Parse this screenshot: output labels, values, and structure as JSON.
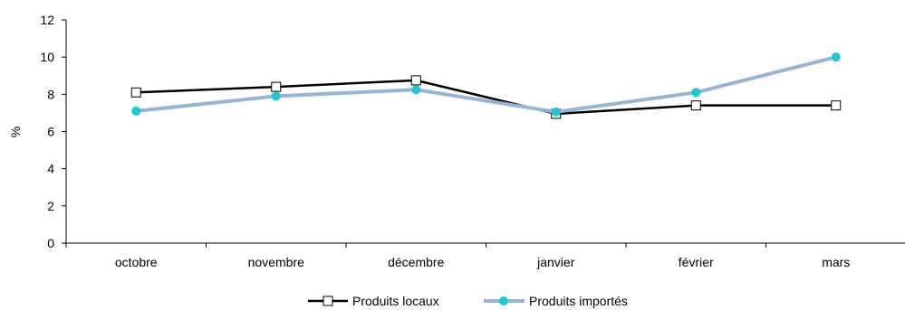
{
  "chart_data": {
    "type": "line",
    "title": "",
    "xlabel": "",
    "ylabel": "%",
    "categories": [
      "octobre",
      "novembre",
      "décembre",
      "janvier",
      "février",
      "mars"
    ],
    "ylim": [
      0,
      12
    ],
    "yticks": [
      0,
      2,
      4,
      6,
      8,
      10,
      12
    ],
    "grid": false,
    "legend_position": "bottom",
    "series": [
      {
        "name": "Produits locaux",
        "values": [
          8.1,
          8.4,
          8.75,
          6.95,
          7.4,
          7.4
        ],
        "line_color": "#000000",
        "marker": "square",
        "marker_fill": "#ffffff"
      },
      {
        "name": "Produits importés",
        "values": [
          7.1,
          7.9,
          8.25,
          7.05,
          8.1,
          10.0
        ],
        "line_color": "#97B3D6",
        "marker": "circle",
        "marker_fill": "#1FC8D0"
      }
    ]
  }
}
